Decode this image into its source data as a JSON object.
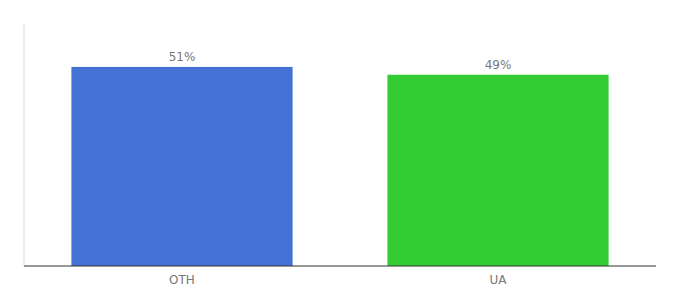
{
  "chart_data": {
    "type": "bar",
    "categories": [
      "OTH",
      "UA"
    ],
    "values": [
      51,
      49
    ],
    "value_labels": [
      "51%",
      "49%"
    ],
    "colors": [
      "#4472d4",
      "#33cc33"
    ],
    "ylim": [
      0,
      62
    ],
    "data_labels": true,
    "tick_labels": "x"
  }
}
